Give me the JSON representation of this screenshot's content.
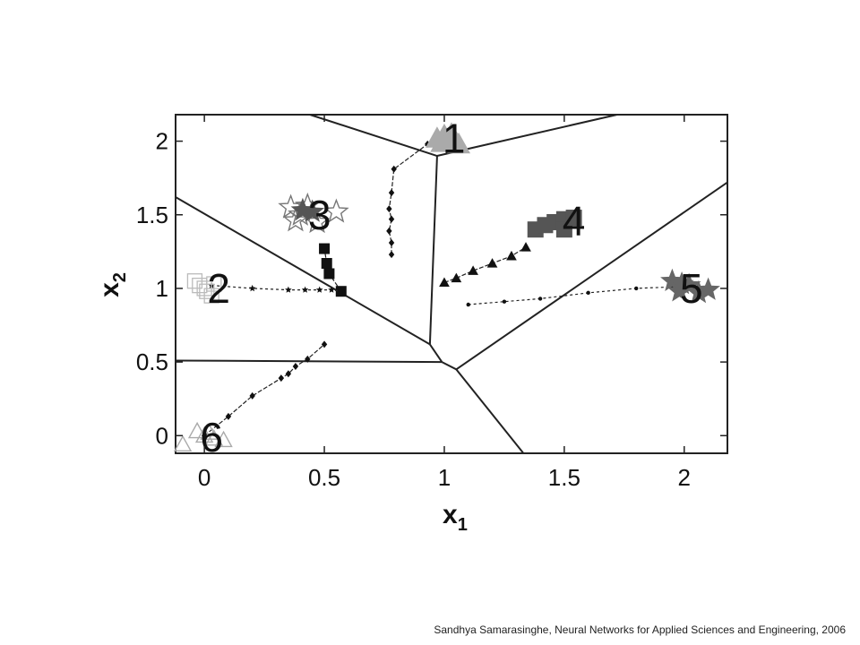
{
  "chart_data": {
    "type": "scatter",
    "xlabel": "x",
    "xlabel_sub": "1",
    "ylabel": "x",
    "ylabel_sub": "2",
    "xlim": [
      -0.12,
      2.18
    ],
    "ylim": [
      -0.12,
      2.18
    ],
    "x_ticks": [
      "0",
      "0.5",
      "1",
      "1.5",
      "2"
    ],
    "x_tick_values": [
      0,
      0.5,
      1,
      1.5,
      2
    ],
    "y_ticks": [
      "0",
      "0.5",
      "1",
      "1.5",
      "2"
    ],
    "y_tick_values": [
      0,
      0.5,
      1,
      1.5,
      2
    ],
    "grid": false,
    "boundaries": [
      {
        "x": [
          -0.12,
          0.94
        ],
        "y": [
          1.62,
          0.62
        ]
      },
      {
        "x": [
          0.44,
          0.97
        ],
        "y": [
          2.18,
          1.9
        ]
      },
      {
        "x": [
          0.97,
          1.72
        ],
        "y": [
          1.9,
          2.18
        ]
      },
      {
        "x": [
          0.97,
          0.94
        ],
        "y": [
          1.9,
          0.62
        ]
      },
      {
        "x": [
          0.94,
          0.99
        ],
        "y": [
          0.62,
          0.5
        ]
      },
      {
        "x": [
          0.99,
          1.05
        ],
        "y": [
          0.5,
          0.45
        ]
      },
      {
        "x": [
          1.05,
          2.18
        ],
        "y": [
          0.45,
          1.72
        ]
      },
      {
        "x": [
          -0.12,
          0.99
        ],
        "y": [
          0.51,
          0.5
        ]
      },
      {
        "x": [
          1.05,
          1.33
        ],
        "y": [
          0.45,
          -0.12
        ]
      }
    ],
    "trajectories": [
      {
        "x": [
          0.78,
          0.78,
          0.77,
          0.78,
          0.77,
          0.78,
          0.79,
          0.93
        ],
        "y": [
          1.23,
          1.31,
          1.39,
          1.47,
          1.54,
          1.65,
          1.81,
          1.98
        ],
        "marker": "diamond"
      },
      {
        "x": [
          0.57,
          0.52,
          0.51,
          0.5
        ],
        "y": [
          0.98,
          1.1,
          1.17,
          1.27
        ],
        "marker": "square"
      },
      {
        "x": [
          0.03,
          0.2,
          0.35,
          0.42,
          0.48,
          0.53,
          0.57
        ],
        "y": [
          1.02,
          1.0,
          0.99,
          0.99,
          0.99,
          0.99,
          0.98
        ],
        "marker": "star-small"
      },
      {
        "x": [
          1.0,
          1.05,
          1.12,
          1.2,
          1.28,
          1.34
        ],
        "y": [
          1.04,
          1.07,
          1.12,
          1.17,
          1.22,
          1.28
        ],
        "marker": "triangle"
      },
      {
        "x": [
          1.1,
          1.25,
          1.4,
          1.6,
          1.8,
          1.95
        ],
        "y": [
          0.89,
          0.91,
          0.93,
          0.97,
          1.0,
          1.01
        ],
        "marker": "dot"
      },
      {
        "x": [
          0.0,
          0.1,
          0.2,
          0.32,
          0.35,
          0.38,
          0.43,
          0.5
        ],
        "y": [
          0.0,
          0.13,
          0.27,
          0.39,
          0.42,
          0.47,
          0.52,
          0.62
        ],
        "marker": "diamond"
      }
    ],
    "clusters": [
      {
        "label": "1",
        "marker": "triangle",
        "color": "#aaaaaa",
        "points": [
          [
            0.99,
            1.99
          ],
          [
            1.02,
            2.01
          ],
          [
            1.04,
            2.0
          ],
          [
            1.0,
            2.04
          ],
          [
            1.06,
            1.98
          ],
          [
            0.97,
            2.02
          ],
          [
            1.03,
            2.05
          ]
        ]
      },
      {
        "label": "2",
        "marker": "square-open",
        "color": "#bbbbbb",
        "points": [
          [
            -0.04,
            1.05
          ],
          [
            0.0,
            1.0
          ],
          [
            0.03,
            0.95
          ],
          [
            -0.02,
            1.02
          ],
          [
            0.04,
            1.03
          ],
          [
            0.01,
            0.98
          ]
        ]
      },
      {
        "label": "3",
        "marker": "star-open",
        "color": "#777777",
        "points": [
          [
            0.36,
            1.55
          ],
          [
            0.4,
            1.5
          ],
          [
            0.43,
            1.56
          ],
          [
            0.47,
            1.45
          ],
          [
            0.55,
            1.52
          ],
          [
            0.38,
            1.46
          ]
        ]
      },
      {
        "label": "3",
        "marker": "star",
        "color": "#555555",
        "points": [
          [
            0.41,
            1.53
          ],
          [
            0.45,
            1.52
          ]
        ]
      },
      {
        "label": "4",
        "marker": "square",
        "color": "#555555",
        "points": [
          [
            1.38,
            1.4
          ],
          [
            1.42,
            1.43
          ],
          [
            1.46,
            1.45
          ],
          [
            1.5,
            1.47
          ],
          [
            1.54,
            1.48
          ],
          [
            1.5,
            1.4
          ]
        ]
      },
      {
        "label": "5",
        "marker": "star",
        "color": "#666666",
        "points": [
          [
            1.95,
            1.05
          ],
          [
            1.98,
            0.98
          ],
          [
            2.02,
            1.02
          ],
          [
            2.06,
            0.97
          ],
          [
            2.1,
            0.99
          ],
          [
            1.99,
            1.03
          ]
        ]
      },
      {
        "label": "6",
        "marker": "triangle-open",
        "color": "#aaaaaa",
        "points": [
          [
            -0.09,
            -0.06
          ],
          [
            -0.03,
            0.03
          ],
          [
            0.0,
            0.0
          ],
          [
            0.04,
            -0.02
          ],
          [
            0.08,
            -0.03
          ],
          [
            0.02,
            0.02
          ]
        ]
      }
    ],
    "cluster_labels": [
      {
        "text": "1",
        "x": 1.04,
        "y": 2.02
      },
      {
        "text": "2",
        "x": 0.06,
        "y": 1.0
      },
      {
        "text": "3",
        "x": 0.48,
        "y": 1.5
      },
      {
        "text": "4",
        "x": 1.54,
        "y": 1.46
      },
      {
        "text": "5",
        "x": 2.03,
        "y": 1.0
      },
      {
        "text": "6",
        "x": 0.03,
        "y": -0.01
      }
    ]
  },
  "caption": "Sandhya Samarasinghe, Neural Networks for Applied Sciences and Engineering, 2006"
}
